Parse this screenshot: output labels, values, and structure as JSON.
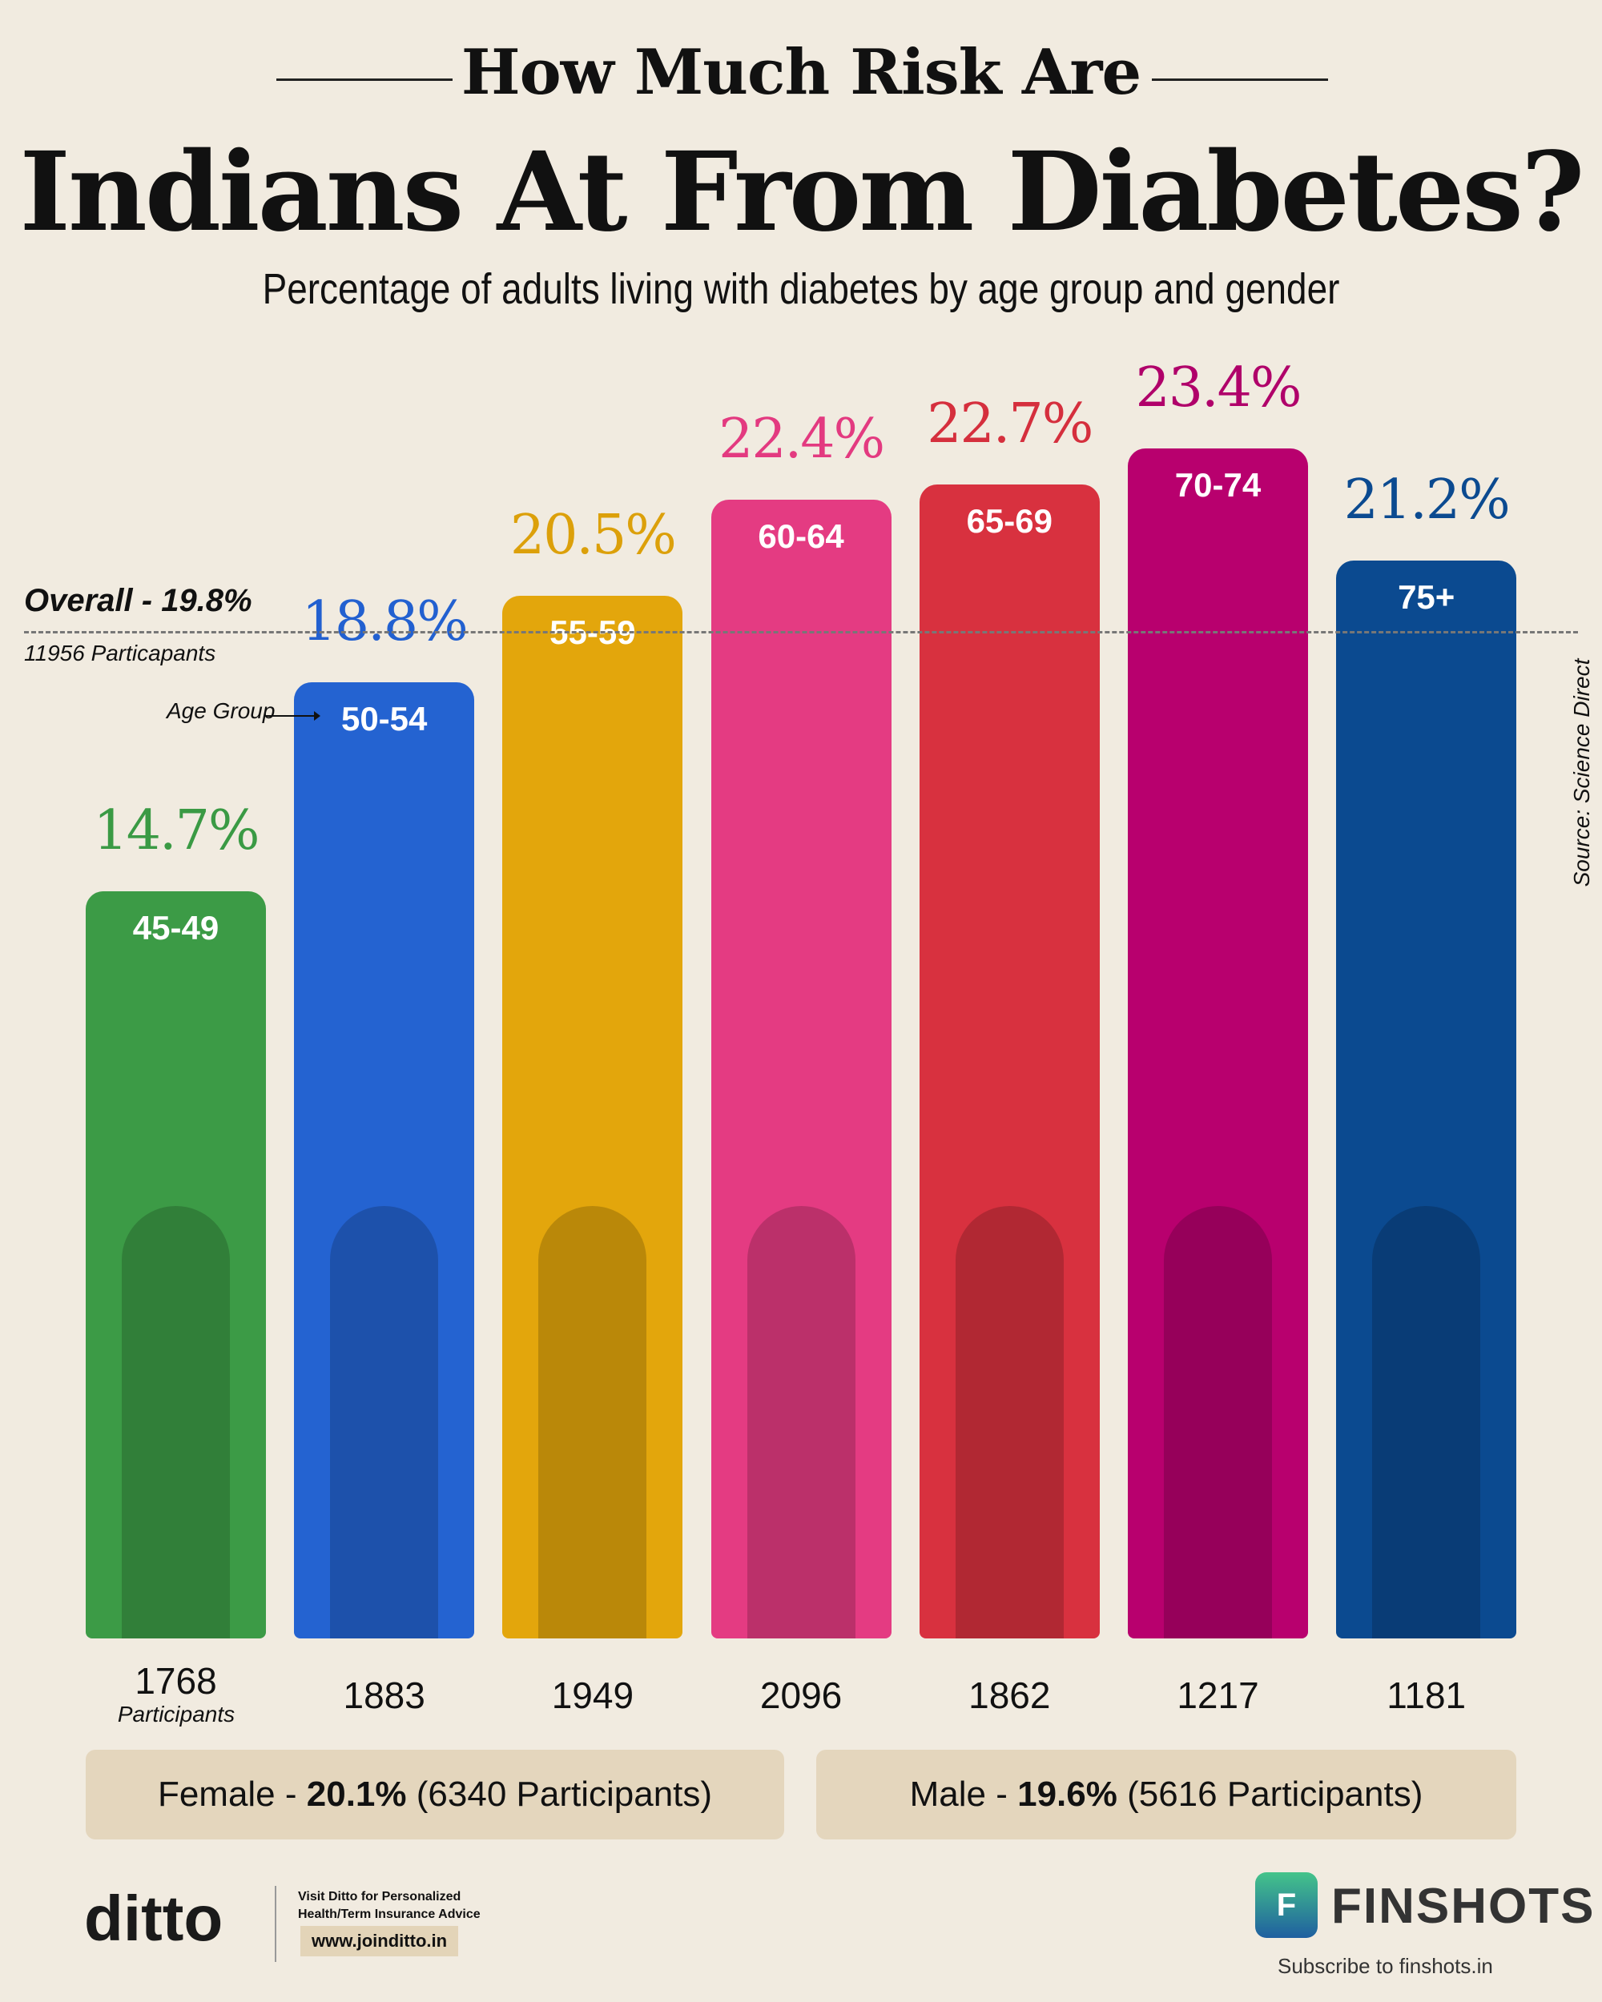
{
  "title_line1": "How Much Risk Are",
  "title_line2": "Indians At From Diabetes?",
  "subtitle": "Percentage of adults living with diabetes by age group and gender",
  "overall": {
    "label": "Overall - 19.8%",
    "value": 19.8,
    "participants": "11956 Particapants"
  },
  "age_group_hint": "Age Group",
  "participants_label": "Participants",
  "source": "Source: Science Direct",
  "chart_data": {
    "type": "bar",
    "categories": [
      "45-49",
      "50-54",
      "55-59",
      "60-64",
      "65-69",
      "70-74",
      "75+"
    ],
    "values": [
      14.7,
      18.8,
      20.5,
      22.4,
      22.7,
      23.4,
      21.2
    ],
    "value_labels": [
      "14.7%",
      "18.8%",
      "20.5%",
      "22.4%",
      "22.7%",
      "23.4%",
      "21.2%"
    ],
    "participants": [
      "1768",
      "1883",
      "1949",
      "2096",
      "1862",
      "1217",
      "1181"
    ],
    "colors": [
      "#3c9b46",
      "#2463d1",
      "#e3a60c",
      "#e43b82",
      "#d8313f",
      "#b8006e",
      "#0b4a90"
    ],
    "label_colors": [
      "#3a9a44",
      "#2260d0",
      "#dca00a",
      "#e33a80",
      "#d52f3d",
      "#b0006a",
      "#0b4a90"
    ],
    "ylim": [
      0,
      25
    ],
    "reference_line": 19.8,
    "grid": false
  },
  "gender": {
    "female": {
      "prefix": "Female - ",
      "value": "20.1%",
      "suffix": " (6340 Participants)"
    },
    "male": {
      "prefix": "Male - ",
      "value": "19.6%",
      "suffix": " (5616 Participants)"
    }
  },
  "footer": {
    "ditto_logo": "ditto",
    "ditto_text": "Visit Ditto for Personalized Health/Term Insurance Advice",
    "ditto_url": "www.joinditto.in",
    "finshots_logo": "FINSHOTS",
    "finshots_sub": "Subscribe to finshots.in"
  }
}
